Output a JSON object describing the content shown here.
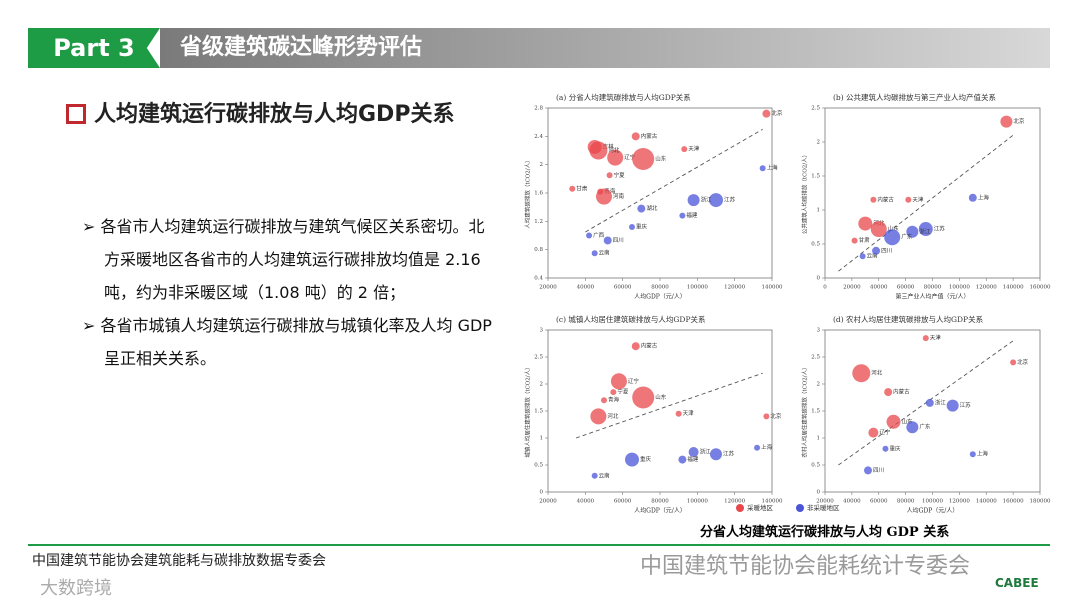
{
  "slide": {
    "part": "Part 3",
    "title": "省级建筑碳达峰形势评估",
    "heading": "人均建筑运行碳排放与人均GDP关系",
    "bullets": [
      "各省市人均建筑运行碳排放与建筑气候区关系密切。北方采暖地区各省市的人均建筑运行碳排放均值是 2.16 吨，约为非采暖区域（1.08 吨）的 2 倍；",
      "各省市城镇人均建筑运行碳排放与城镇化率及人均 GDP 呈正相关关系。"
    ],
    "caption": "分省人均建筑运行碳排放与人均 GDP 关系",
    "footer": "中国建筑节能协会建筑能耗与碳排放数据专委会",
    "watermark": "中国建筑节能协会能耗统计专委会",
    "corner_mark": "大数跨境",
    "logo": "CABEE"
  },
  "legend": [
    {
      "name": "采暖地区",
      "color": "#e8474b"
    },
    {
      "name": "非采暖地区",
      "color": "#4a55d8"
    }
  ],
  "chart_data": [
    {
      "type": "scatter",
      "title": "(a) 分省人均建筑碳排放与人均GDP关系",
      "xlabel": "人均GDP（元/人）",
      "ylabel": "人均建筑碳排放（tCO2/人）",
      "xlim": [
        20000,
        140000
      ],
      "xticks": [
        20000,
        40000,
        60000,
        80000,
        100000,
        120000,
        140000
      ],
      "ylim": [
        0.4,
        2.8
      ],
      "yticks": [
        0.4,
        0.8,
        1.2,
        1.6,
        2,
        2.4,
        2.8
      ],
      "trend": [
        [
          40000,
          1.05
        ],
        [
          135000,
          2.5
        ]
      ],
      "series": [
        {
          "color": "#e8474b",
          "labels": [
            "北京",
            "内蒙古",
            "天津",
            "吉林",
            "辽宁",
            "河北",
            "山东",
            "宁夏",
            "甘肃",
            "青海",
            "河南"
          ],
          "x": [
            137000,
            67000,
            93000,
            45000,
            56000,
            47000,
            71000,
            53000,
            33000,
            48000,
            50000
          ],
          "values": [
            2.72,
            2.4,
            2.22,
            2.25,
            2.1,
            2.2,
            2.08,
            1.85,
            1.66,
            1.62,
            1.55
          ],
          "sizes": [
            4,
            4,
            3,
            7,
            8,
            9,
            11,
            3,
            3,
            3,
            8
          ]
        },
        {
          "color": "#4a55d8",
          "labels": [
            "上海",
            "江苏",
            "浙江",
            "福建",
            "湖北",
            "重庆",
            "四川",
            "云南",
            "广西"
          ],
          "x": [
            135000,
            110000,
            98000,
            92000,
            70000,
            65000,
            52000,
            45000,
            42000
          ],
          "values": [
            1.95,
            1.5,
            1.5,
            1.28,
            1.38,
            1.12,
            0.93,
            0.75,
            1.0
          ],
          "sizes": [
            3,
            7,
            6,
            3,
            4,
            3,
            4,
            3,
            3
          ]
        }
      ]
    },
    {
      "type": "scatter",
      "title": "(b) 公共建筑人均碳排放与第三产业人均产值关系",
      "xlabel": "第三产业人均产值（元/人）",
      "ylabel": "公共建筑人均碳排放（tCO2/人）",
      "xlim": [
        0,
        160000
      ],
      "xticks": [
        0,
        20000,
        40000,
        60000,
        80000,
        100000,
        120000,
        140000,
        160000
      ],
      "ylim": [
        0,
        2.5
      ],
      "yticks": [
        0,
        0.5,
        1,
        1.5,
        2,
        2.5
      ],
      "trend": [
        [
          10000,
          0.1
        ],
        [
          140000,
          2.1
        ]
      ],
      "series": [
        {
          "color": "#e8474b",
          "labels": [
            "北京",
            "内蒙古",
            "天津",
            "河北",
            "山东",
            "甘肃"
          ],
          "x": [
            135000,
            36000,
            62000,
            30000,
            40000,
            22000
          ],
          "values": [
            2.3,
            1.15,
            1.15,
            0.8,
            0.72,
            0.55
          ],
          "sizes": [
            6,
            3,
            3,
            7,
            8,
            3
          ]
        },
        {
          "color": "#4a55d8",
          "labels": [
            "上海",
            "江苏",
            "浙江",
            "广东",
            "云南",
            "四川"
          ],
          "x": [
            110000,
            75000,
            65000,
            50000,
            28000,
            38000
          ],
          "values": [
            1.18,
            0.72,
            0.68,
            0.6,
            0.32,
            0.4
          ],
          "sizes": [
            4,
            7,
            6,
            8,
            3,
            4
          ]
        }
      ]
    },
    {
      "type": "scatter",
      "title": "(c) 城镇人均居住建筑碳排放与人均GDP关系",
      "xlabel": "人均GDP（元/人）",
      "ylabel": "城镇人均居住建筑碳排放（tCO2/人）",
      "xlim": [
        20000,
        140000
      ],
      "xticks": [
        20000,
        40000,
        60000,
        80000,
        100000,
        120000,
        140000
      ],
      "ylim": [
        0,
        3
      ],
      "yticks": [
        0,
        0.5,
        1,
        1.5,
        2,
        2.5,
        3
      ],
      "trend": [
        [
          35000,
          1.0
        ],
        [
          135000,
          2.2
        ]
      ],
      "series": [
        {
          "color": "#e8474b",
          "labels": [
            "内蒙古",
            "辽宁",
            "宁夏",
            "青海",
            "山东",
            "河北",
            "天津",
            "北京"
          ],
          "x": [
            67000,
            58000,
            55000,
            50000,
            71000,
            47000,
            90000,
            137000
          ],
          "values": [
            2.7,
            2.05,
            1.85,
            1.7,
            1.75,
            1.4,
            1.45,
            1.4
          ],
          "sizes": [
            4,
            8,
            3,
            3,
            11,
            8,
            3,
            3
          ]
        },
        {
          "color": "#4a55d8",
          "labels": [
            "上海",
            "江苏",
            "浙江",
            "福建",
            "重庆",
            "云南"
          ],
          "x": [
            132000,
            110000,
            98000,
            92000,
            65000,
            45000
          ],
          "values": [
            0.82,
            0.7,
            0.74,
            0.6,
            0.6,
            0.3
          ],
          "sizes": [
            3,
            6,
            5,
            4,
            7,
            3
          ]
        }
      ]
    },
    {
      "type": "scatter",
      "title": "(d) 农村人均居住建筑碳排放与人均GDP关系",
      "xlabel": "人均GDP（元/人）",
      "ylabel": "农村人均居住建筑碳排放（tCO2/人）",
      "xlim": [
        20000,
        180000
      ],
      "xticks": [
        20000,
        40000,
        60000,
        80000,
        100000,
        120000,
        140000,
        160000,
        180000
      ],
      "ylim": [
        0,
        3
      ],
      "yticks": [
        0,
        0.5,
        1,
        1.5,
        2,
        2.5,
        3
      ],
      "trend": [
        [
          30000,
          0.5
        ],
        [
          160000,
          2.8
        ]
      ],
      "series": [
        {
          "color": "#e8474b",
          "labels": [
            "天津",
            "河北",
            "内蒙古",
            "北京",
            "山东",
            "辽宁"
          ],
          "x": [
            95000,
            47000,
            67000,
            160000,
            71000,
            56000
          ],
          "values": [
            2.85,
            2.2,
            1.85,
            2.4,
            1.3,
            1.1
          ],
          "sizes": [
            3,
            9,
            4,
            3,
            7,
            5
          ]
        },
        {
          "color": "#4a55d8",
          "labels": [
            "上海",
            "江苏",
            "浙江",
            "广东",
            "重庆",
            "四川"
          ],
          "x": [
            130000,
            115000,
            98000,
            85000,
            65000,
            52000
          ],
          "values": [
            0.7,
            1.6,
            1.65,
            1.2,
            0.8,
            0.4
          ],
          "sizes": [
            3,
            6,
            4,
            6,
            3,
            4
          ]
        }
      ]
    }
  ]
}
